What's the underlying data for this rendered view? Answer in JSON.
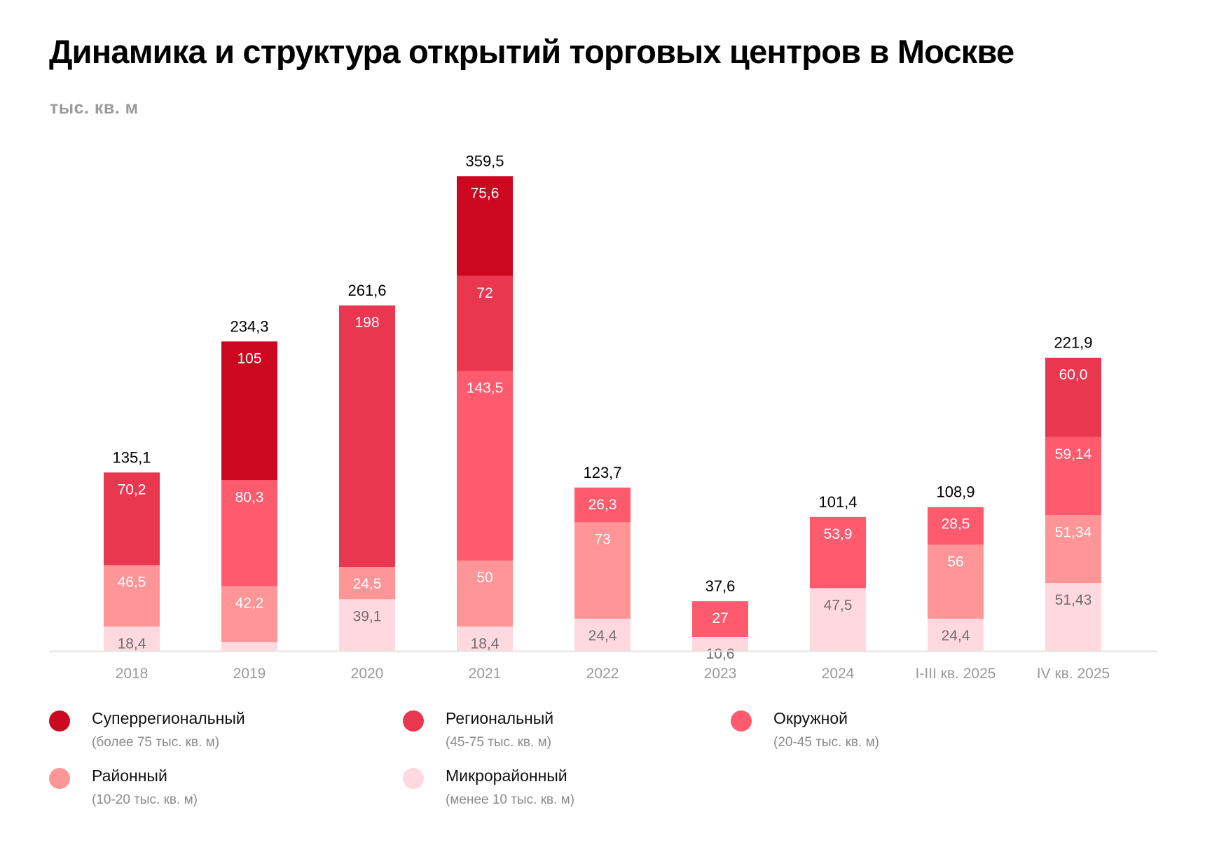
{
  "header": {
    "title": "Динамика и структура открытий торговых центров в Москве",
    "unit": "тыс. кв. м"
  },
  "chart_data": {
    "type": "bar",
    "stacked": true,
    "title": "Динамика и структура открытий торговых центров в Москве",
    "ylabel": "тыс. кв. м",
    "xlabel": "",
    "ylim": [
      0,
      360
    ],
    "grid": false,
    "legend_position": "bottom",
    "categories": [
      "2018",
      "2019",
      "2020",
      "2021",
      "2022",
      "2023",
      "2024",
      "I-III кв. 2025",
      "IV кв. 2025"
    ],
    "totals": [
      "135,1",
      "234,3",
      "261,6",
      "359,5",
      "123,7",
      "37,6",
      "101,4",
      "108,9",
      "221,9"
    ],
    "series": [
      {
        "key": "micro",
        "name": "Микрорайонный",
        "description": "(менее 10 тыс. кв. м)",
        "color": "#FFD9DF",
        "label_color": "#6f6f6f",
        "values": [
          18.4,
          6.8,
          39.1,
          18.4,
          24.4,
          10.6,
          47.5,
          24.4,
          51.43
        ],
        "labels": [
          "18,4",
          "",
          "39,1",
          "18,4",
          "24,4",
          "10,6",
          "47,5",
          "24,4",
          "51,43"
        ]
      },
      {
        "key": "district",
        "name": "Районный",
        "description": "(10-20 тыс. кв. м)",
        "color": "#FF9597",
        "label_color": "#ffffff",
        "values": [
          46.5,
          42.2,
          24.5,
          50,
          73,
          0,
          0,
          56,
          51.34
        ],
        "labels": [
          "46,5",
          "42,2",
          "24,5",
          "50",
          "73",
          "",
          "",
          "56",
          "51,34"
        ]
      },
      {
        "key": "okrug",
        "name": "Окружной",
        "description": "(20-45 тыс. кв. м)",
        "color": "#FF5A6E",
        "label_color": "#ffffff",
        "values": [
          0,
          80.3,
          0,
          143.5,
          26.3,
          27,
          53.9,
          28.5,
          59.14
        ],
        "labels": [
          "",
          "80,3",
          "",
          "143,5",
          "26,3",
          "27",
          "53,9",
          "28,5",
          "59,14"
        ]
      },
      {
        "key": "regional",
        "name": "Региональный",
        "description": "(45-75 тыс. кв. м)",
        "color": "#E8374F",
        "label_color": "#ffffff",
        "values": [
          70.2,
          0,
          198,
          72,
          0,
          0,
          0,
          0,
          60.0
        ],
        "labels": [
          "70,2",
          "",
          "198",
          "72",
          "",
          "",
          "",
          "",
          "60,0"
        ]
      },
      {
        "key": "superregional",
        "name": "Суперрегиональный",
        "description": "(более 75 тыс. кв. м)",
        "color": "#CC0820",
        "label_color": "#ffffff",
        "values": [
          0,
          105,
          0,
          75.6,
          0,
          0,
          0,
          0,
          0
        ],
        "labels": [
          "",
          "105",
          "",
          "75,6",
          "",
          "",
          "",
          "",
          ""
        ]
      }
    ],
    "legend_order": [
      "superregional",
      "regional",
      "okrug",
      "district",
      "micro"
    ]
  }
}
